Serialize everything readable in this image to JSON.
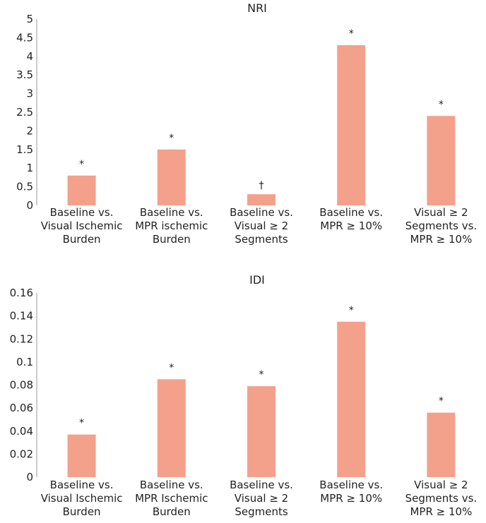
{
  "chart_data": [
    {
      "type": "bar",
      "title": "NRI",
      "categories": [
        [
          "Baseline vs.",
          "Visual Ischemic",
          "Burden"
        ],
        [
          "Baseline vs.",
          "MPR ischemic",
          "Burden"
        ],
        [
          "Baseline vs.",
          "Visual ≥ 2",
          "Segments"
        ],
        [
          "Baseline vs.",
          "MPR ≥ 10%"
        ],
        [
          "Visual ≥ 2",
          "Segments vs.",
          "MPR ≥ 10%"
        ]
      ],
      "values": [
        0.8,
        1.5,
        0.3,
        4.3,
        2.4
      ],
      "annotations": [
        "*",
        "*",
        "†",
        "*",
        "*"
      ],
      "ylim": [
        0,
        5
      ],
      "yticks": [
        "0",
        "0.5",
        "1",
        "1.5",
        "2",
        "2.5",
        "3",
        "3.5",
        "4",
        "4.5",
        "5"
      ],
      "ytick_values": [
        0,
        0.5,
        1,
        1.5,
        2,
        2.5,
        3,
        3.5,
        4,
        4.5,
        5
      ],
      "xlabel": "",
      "ylabel": "",
      "bar_color": "#f4a18b"
    },
    {
      "type": "bar",
      "title": "IDI",
      "categories": [
        [
          "Baseline vs.",
          "Visual Ischemic",
          "Burden"
        ],
        [
          "Baseline vs.",
          "MPR Ischemic",
          "Burden"
        ],
        [
          "Baseline vs.",
          "Visual ≥ 2",
          "Segments"
        ],
        [
          "Baseline vs.",
          "MPR ≥ 10%"
        ],
        [
          "Visual ≥ 2",
          "Segments vs.",
          "MPR ≥ 10%"
        ]
      ],
      "values": [
        0.037,
        0.085,
        0.079,
        0.135,
        0.056
      ],
      "annotations": [
        "*",
        "*",
        "*",
        "*",
        "*"
      ],
      "ylim": [
        0,
        0.16
      ],
      "yticks": [
        "0",
        "0.02",
        "0.04",
        "0.06",
        "0.08",
        "0.1",
        "0.12",
        "0.14",
        "0.16"
      ],
      "ytick_values": [
        0,
        0.02,
        0.04,
        0.06,
        0.08,
        0.1,
        0.12,
        0.14,
        0.16
      ],
      "xlabel": "",
      "ylabel": "",
      "bar_color": "#f4a18b"
    }
  ]
}
